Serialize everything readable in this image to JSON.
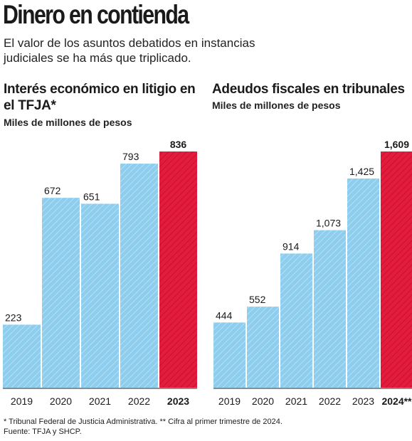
{
  "header": {
    "title": "Dinero en contienda",
    "subtitle": "El valor de los asuntos debatidos en instancias judiciales se ha más que triplicado."
  },
  "colors": {
    "bar": "#8dcdee",
    "highlight": "#e31c3d",
    "text": "#1a1a1a"
  },
  "chart_data": [
    {
      "type": "bar",
      "title": "Interés económico en litigio en el TFJA*",
      "subtitle": "Miles de millones de pesos",
      "categories": [
        "2019",
        "2020",
        "2021",
        "2022",
        "2023"
      ],
      "values": [
        223,
        672,
        651,
        793,
        836
      ],
      "value_labels": [
        "223",
        "672",
        "651",
        "793",
        "836"
      ],
      "highlight_index": 4,
      "ylim": [
        0,
        836
      ]
    },
    {
      "type": "bar",
      "title": "Adeudos fiscales en tribunales",
      "subtitle": "Miles de millones de pesos",
      "categories": [
        "2019",
        "2020",
        "2021",
        "2022",
        "2023",
        "2024**"
      ],
      "values": [
        444,
        552,
        914,
        1073,
        1425,
        1609
      ],
      "value_labels": [
        "444",
        "552",
        "914",
        "1,073",
        "1,425",
        "1,609"
      ],
      "highlight_index": 5,
      "ylim": [
        0,
        1609
      ]
    }
  ],
  "footer": {
    "note": "* Tribunal Federal de Justicia Administrativa. ** Cifra al primer trimestre de 2024.",
    "source": "Fuente: TFJA y SHCP."
  }
}
